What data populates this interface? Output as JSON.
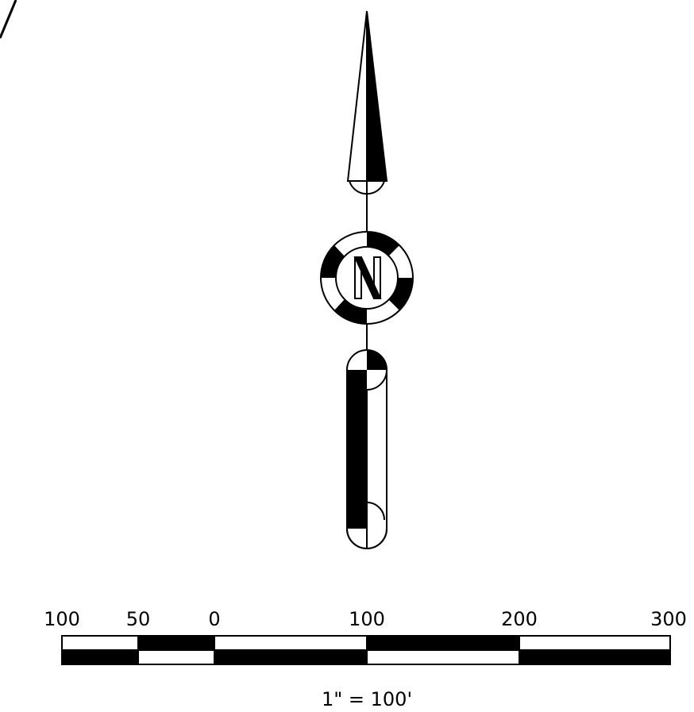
{
  "north_arrow": {
    "letter": "N"
  },
  "scale_bar": {
    "labels": [
      "100",
      "50",
      "0",
      "100",
      "200",
      "300"
    ],
    "ratio": "1\" = 100'"
  },
  "colors": {
    "ink": "#000000",
    "paper": "#ffffff"
  }
}
